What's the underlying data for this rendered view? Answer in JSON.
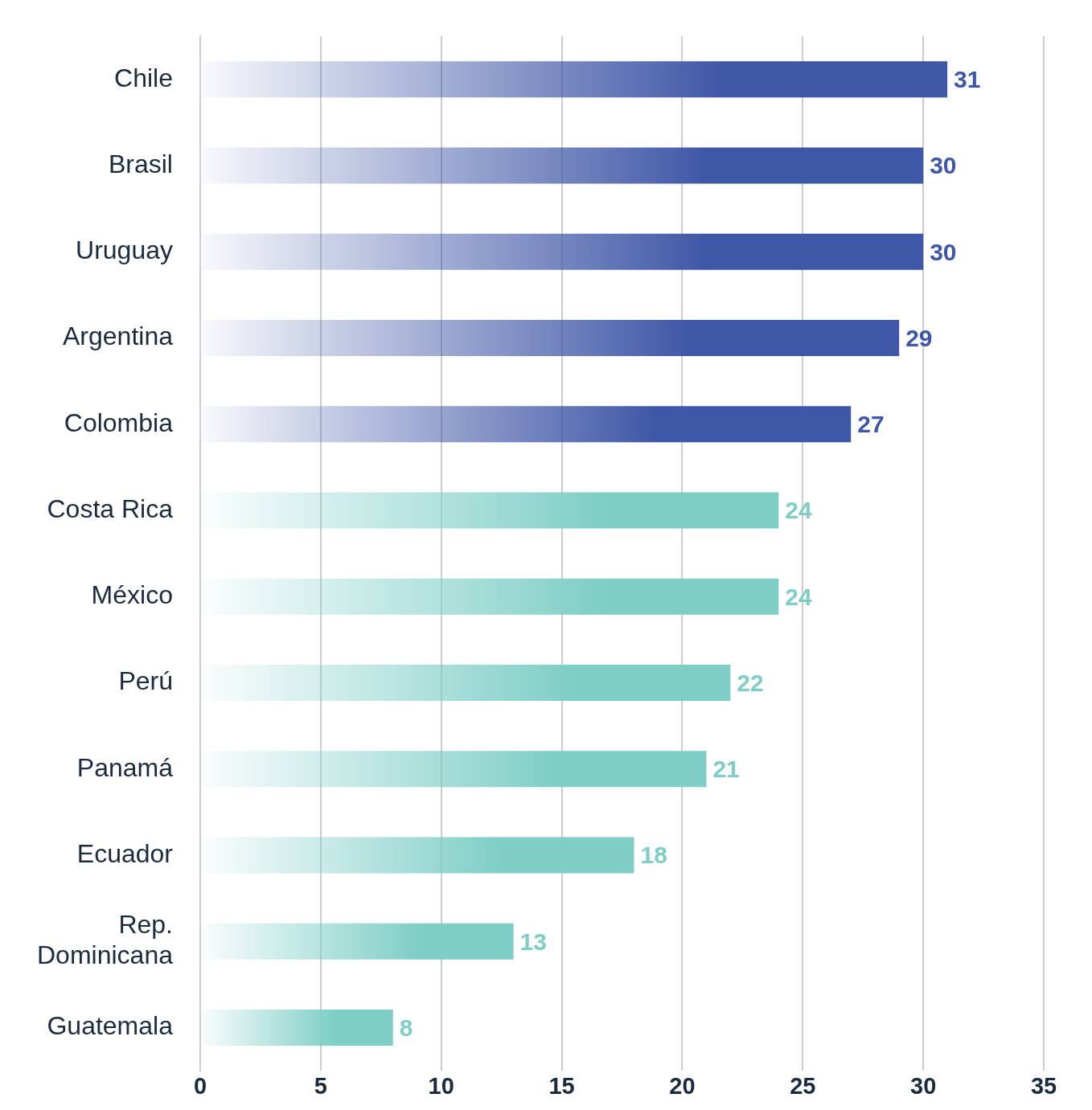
{
  "chart_data": {
    "type": "bar",
    "orientation": "horizontal",
    "categories": [
      "Chile",
      "Brasil",
      "Uruguay",
      "Argentina",
      "Colombia",
      "Costa Rica",
      "México",
      "Perú",
      "Panamá",
      "Ecuador",
      "Rep. Dominicana",
      "Guatemala"
    ],
    "values": [
      31,
      30,
      30,
      29,
      27,
      24,
      24,
      22,
      21,
      18,
      13,
      8
    ],
    "colors": [
      "#3f57a7",
      "#3f57a7",
      "#3f57a7",
      "#3f57a7",
      "#3f57a7",
      "#7ecec6",
      "#7ecec6",
      "#7ecec6",
      "#7ecec6",
      "#7ecec6",
      "#7ecec6",
      "#7ecec6"
    ],
    "xlim": [
      0,
      35
    ],
    "xticks": [
      0,
      5,
      10,
      15,
      20,
      25,
      30,
      35
    ],
    "grid": "x",
    "data_labels": true,
    "legend": false
  }
}
